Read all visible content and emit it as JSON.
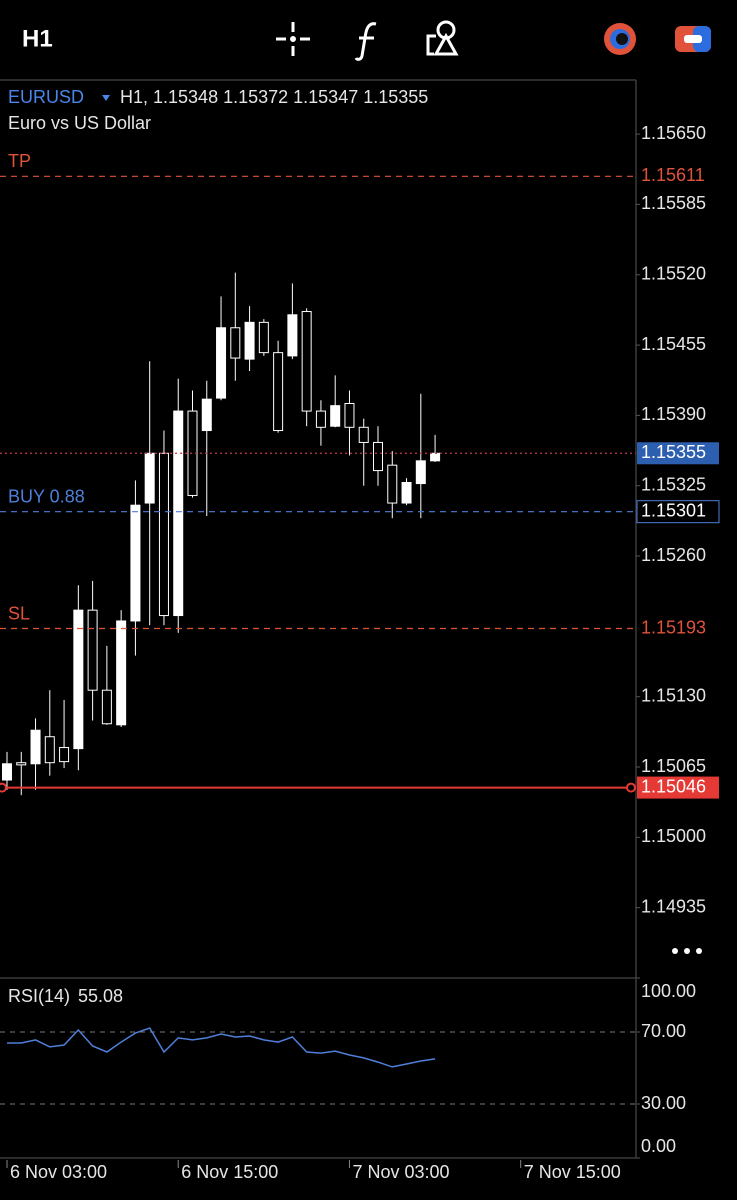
{
  "toolbar": {
    "timeframe": "H1"
  },
  "header": {
    "symbol": "EURUSD",
    "quote": "H1, 1.15348 1.15372 1.15347 1.15355",
    "description": "Euro vs US Dollar"
  },
  "chart_data": [
    {
      "type": "candlestick",
      "open": [
        1.15053,
        1.15069,
        1.15068,
        1.15093,
        1.15083,
        1.15082,
        1.1521,
        1.15136,
        1.15104,
        1.152,
        1.15309,
        1.15355,
        1.15205,
        1.15394,
        1.15376,
        1.15406,
        1.15471,
        1.15442,
        1.15476,
        1.15448,
        1.15445,
        1.15486,
        1.15394,
        1.1538,
        1.15401,
        1.15379,
        1.15365,
        1.15344,
        1.15309,
        1.15327,
        1.15348
      ],
      "high": [
        1.15079,
        1.15079,
        1.1511,
        1.15136,
        1.15127,
        1.15233,
        1.15237,
        1.15177,
        1.1521,
        1.1533,
        1.1544,
        1.15376,
        1.15424,
        1.15413,
        1.15422,
        1.155,
        1.15522,
        1.15491,
        1.15479,
        1.15459,
        1.15512,
        1.15489,
        1.15404,
        1.15427,
        1.15413,
        1.15387,
        1.1538,
        1.15357,
        1.15332,
        1.1541,
        1.15372
      ],
      "low": [
        1.15044,
        1.15039,
        1.15044,
        1.15057,
        1.15064,
        1.15062,
        1.15108,
        1.15104,
        1.15102,
        1.15168,
        1.15196,
        1.15196,
        1.15189,
        1.15314,
        1.15297,
        1.15404,
        1.15422,
        1.15431,
        1.15445,
        1.15374,
        1.15442,
        1.1538,
        1.15362,
        1.15379,
        1.15353,
        1.15325,
        1.15325,
        1.15295,
        1.15307,
        1.15295,
        1.15347
      ],
      "close": [
        1.15068,
        1.15067,
        1.15099,
        1.15069,
        1.1507,
        1.1521,
        1.15136,
        1.15105,
        1.152,
        1.15307,
        1.15355,
        1.15205,
        1.15394,
        1.15316,
        1.15405,
        1.15471,
        1.15443,
        1.15476,
        1.15448,
        1.15376,
        1.15483,
        1.15394,
        1.15379,
        1.15399,
        1.15379,
        1.15365,
        1.15339,
        1.15309,
        1.15328,
        1.15348,
        1.15355
      ],
      "up_color": "#ffffff",
      "down_color": "#000000",
      "wick_color": "#ffffff",
      "ylim": [
        1.1487,
        1.157
      ],
      "yticks": [
        {
          "value": 1.1565,
          "label": "1.15650"
        },
        1.15585,
        {
          "value": 1.1552,
          "label": "1.15520"
        },
        1.15455,
        {
          "value": 1.1539,
          "label": "1.15390"
        },
        1.15325,
        {
          "value": 1.1526,
          "label": "1.15260"
        },
        {
          "value": 1.1513,
          "label": "1.15130"
        },
        1.15065,
        {
          "value": 1.15,
          "label": "1.15000"
        },
        1.14935
      ],
      "xlim": [
        -0.49,
        44.08
      ],
      "xticks": [
        {
          "value": 0,
          "label": "6 Nov 03:00"
        },
        {
          "value": 12,
          "label": "6 Nov 15:00"
        },
        {
          "value": 24,
          "label": "7 Nov 03:00"
        },
        {
          "value": 36,
          "label": "7 Nov 15:00"
        }
      ],
      "levels": [
        {
          "label": "TP",
          "value": 1.15611,
          "color": "#e0533a",
          "style": "dashed",
          "box": "none"
        },
        {
          "value": 1.15355,
          "color": "#c0394a",
          "style": "dotted",
          "box": "fill",
          "box_color": "#2d5fb0"
        },
        {
          "label": "BUY 0.88",
          "value": 1.15301,
          "color": "#4f7fd9",
          "style": "dashed",
          "box": "outline",
          "box_color": "#4f7fd9"
        },
        {
          "label": "SL",
          "value": 1.15193,
          "color": "#e0533a",
          "style": "dashed",
          "box": "none"
        },
        {
          "value": 1.15046,
          "color": "#e53935",
          "style": "solid",
          "box": "fill",
          "box_color": "#e53935"
        }
      ]
    },
    {
      "type": "line",
      "title": "RSI(14)",
      "current": 55.08,
      "color": "#4f7fd9",
      "values": [
        63.9,
        63.9,
        65.6,
        61.7,
        62.8,
        71.1,
        62.2,
        58.9,
        64.4,
        69.4,
        72.2,
        58.9,
        66.7,
        65.6,
        66.7,
        68.9,
        67.2,
        67.8,
        65.6,
        64.4,
        67.2,
        58.9,
        58.3,
        59.4,
        57.2,
        55.6,
        53.3,
        50.6,
        52.2,
        53.9,
        55.08
      ],
      "ylim": [
        0,
        100
      ],
      "yticks": [
        {
          "value": 100,
          "label": "100.00"
        },
        {
          "value": 70,
          "label": "70.00"
        },
        {
          "value": 30,
          "label": "30.00"
        },
        {
          "value": 0,
          "label": "0.00"
        }
      ],
      "levels": [
        70,
        30
      ]
    }
  ]
}
